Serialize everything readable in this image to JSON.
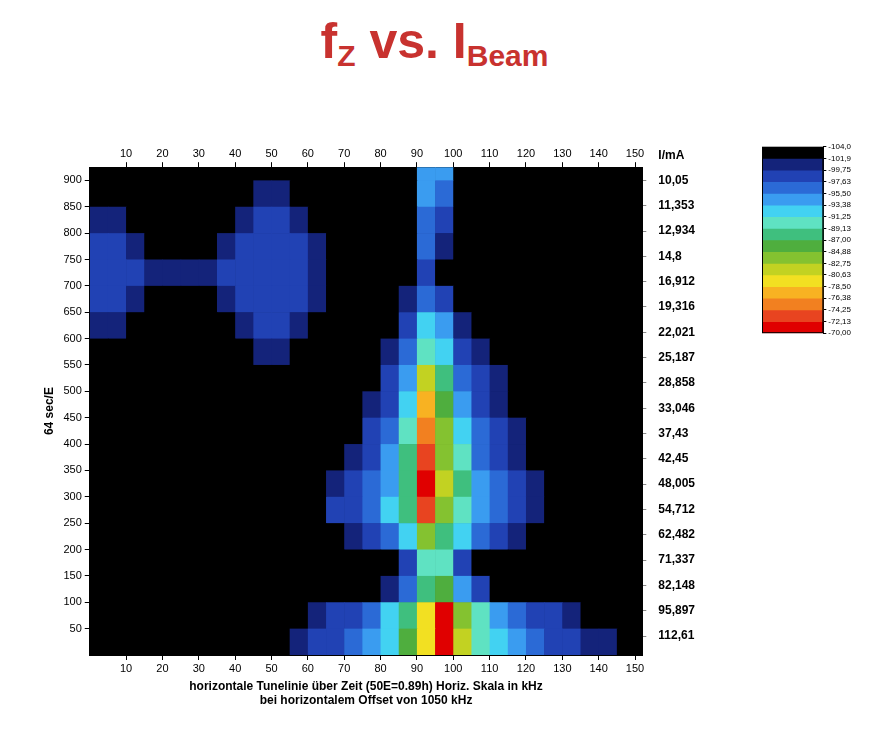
{
  "chart_data": {
    "type": "heatmap",
    "title": [
      {
        "text": "f"
      },
      {
        "text": "Z",
        "sub": true
      },
      {
        "text": " vs. I"
      },
      {
        "text": "Beam",
        "sub": true
      }
    ],
    "x_label": [
      "horizontale Tunelinie über Zeit (50E=0.89h) Horiz. Skala in kHz",
      "bei horizontalem Offset von 1050 kHz"
    ],
    "y_label": "64 sec/E",
    "xlim": [
      0,
      152
    ],
    "xticks": [
      10,
      20,
      30,
      40,
      50,
      60,
      70,
      80,
      90,
      100,
      110,
      120,
      130,
      140,
      150
    ],
    "ylim": [
      0,
      925
    ],
    "yticks": [
      50,
      100,
      150,
      200,
      250,
      300,
      350,
      400,
      450,
      500,
      550,
      600,
      650,
      700,
      750,
      800,
      850,
      900
    ],
    "right_title": "I/mA",
    "right_labels": [
      {
        "y": 900,
        "label": "10,05"
      },
      {
        "y": 852,
        "label": "11,353"
      },
      {
        "y": 804,
        "label": "12,934"
      },
      {
        "y": 756,
        "label": "14,8"
      },
      {
        "y": 708,
        "label": "16,912"
      },
      {
        "y": 660,
        "label": "19,316"
      },
      {
        "y": 612,
        "label": "22,021"
      },
      {
        "y": 564,
        "label": "25,187"
      },
      {
        "y": 516,
        "label": "28,858"
      },
      {
        "y": 468,
        "label": "33,046"
      },
      {
        "y": 420,
        "label": "37,43"
      },
      {
        "y": 372,
        "label": "42,45"
      },
      {
        "y": 324,
        "label": "48,005"
      },
      {
        "y": 276,
        "label": "54,712"
      },
      {
        "y": 228,
        "label": "62,482"
      },
      {
        "y": 180,
        "label": "71,337"
      },
      {
        "y": 132,
        "label": "82,148"
      },
      {
        "y": 84,
        "label": "95,897"
      },
      {
        "y": 36,
        "label": "112,61"
      }
    ],
    "grid": false,
    "x": [
      2.5,
      7.5,
      12.5,
      17.5,
      22.5,
      27.5,
      32.5,
      37.5,
      42.5,
      47.5,
      52.5,
      57.5,
      62.5,
      67.5,
      72.5,
      77.5,
      82.5,
      87.5,
      92.5,
      97.5,
      102.5,
      107.5,
      112.5,
      117.5,
      122.5,
      127.5,
      132.5,
      137.5,
      142.5,
      147.5
    ],
    "y": [
      925,
      875,
      825,
      775,
      725,
      675,
      625,
      575,
      525,
      475,
      425,
      375,
      325,
      275,
      225,
      175,
      125,
      75,
      25
    ],
    "z": [
      [
        -104,
        -104,
        -104,
        -104,
        -104,
        -104,
        -104,
        -104,
        -104,
        -104,
        -104,
        -104,
        -104,
        -104,
        -104,
        -104,
        -104,
        -104,
        -94,
        -95,
        -104,
        -104,
        -104,
        -104,
        -104,
        -104,
        -104,
        -104,
        -104,
        -104
      ],
      [
        -104,
        -104,
        -104,
        -104,
        -104,
        -104,
        -104,
        -104,
        -104,
        -101,
        -101,
        -104,
        -104,
        -104,
        -104,
        -104,
        -104,
        -104,
        -95,
        -97,
        -102,
        -104,
        -104,
        -104,
        -104,
        -104,
        -104,
        -104,
        -104,
        -104
      ],
      [
        -101,
        -101,
        -104,
        -104,
        -104,
        -104,
        -104,
        -104,
        -101,
        -99,
        -99,
        -101,
        -104,
        -104,
        -104,
        -104,
        -104,
        -104,
        -96,
        -98,
        -104,
        -104,
        -104,
        -104,
        -104,
        -104,
        -104,
        -104,
        -104,
        -104
      ],
      [
        -99,
        -99,
        -101,
        -104,
        -104,
        -104,
        -104,
        -101,
        -99,
        -99,
        -99,
        -99,
        -101,
        -104,
        -104,
        -104,
        -104,
        -104,
        -97,
        -101,
        -104,
        -104,
        -104,
        -104,
        -104,
        -104,
        -104,
        -104,
        -104,
        -104
      ],
      [
        -99,
        -99,
        -99,
        -101,
        -101,
        -101,
        -101,
        -99,
        -99,
        -99,
        -99,
        -99,
        -101,
        -104,
        -104,
        -104,
        -104,
        -104,
        -98,
        -104,
        -104,
        -104,
        -104,
        -104,
        -104,
        -104,
        -104,
        -104,
        -104,
        -104
      ],
      [
        -99,
        -99,
        -101,
        -104,
        -104,
        -104,
        -104,
        -101,
        -99,
        -99,
        -99,
        -99,
        -101,
        -104,
        -104,
        -104,
        -104,
        -101,
        -96,
        -99,
        -104,
        -104,
        -104,
        -104,
        -104,
        -104,
        -104,
        -104,
        -104,
        -104
      ],
      [
        -101,
        -101,
        -104,
        -104,
        -104,
        -104,
        -104,
        -104,
        -101,
        -99,
        -99,
        -101,
        -104,
        -104,
        -104,
        -104,
        -104,
        -99,
        -93,
        -95,
        -101,
        -104,
        -104,
        -104,
        -104,
        -104,
        -104,
        -104,
        -104,
        -104
      ],
      [
        -104,
        -104,
        -104,
        -104,
        -104,
        -104,
        -104,
        -104,
        -104,
        -101,
        -101,
        -104,
        -104,
        -104,
        -104,
        -104,
        -101,
        -97,
        -90,
        -92,
        -98,
        -101,
        -104,
        -104,
        -104,
        -104,
        -104,
        -104,
        -104,
        -104
      ],
      [
        -104,
        -104,
        -104,
        -104,
        -104,
        -104,
        -104,
        -104,
        -104,
        -104,
        -104,
        -104,
        -104,
        -104,
        -104,
        -104,
        -99,
        -95,
        -81,
        -88,
        -96,
        -99,
        -101,
        -104,
        -104,
        -104,
        -104,
        -104,
        -104,
        -104
      ],
      [
        -104,
        -104,
        -104,
        -104,
        -104,
        -104,
        -104,
        -104,
        -104,
        -104,
        -104,
        -104,
        -104,
        -104,
        -104,
        -101,
        -98,
        -93,
        -78,
        -86,
        -94,
        -98,
        -101,
        -104,
        -104,
        -104,
        -104,
        -104,
        -104,
        -104
      ],
      [
        -104,
        -104,
        -104,
        -104,
        -104,
        -104,
        -104,
        -104,
        -104,
        -104,
        -104,
        -104,
        -104,
        -104,
        -104,
        -99,
        -96,
        -91,
        -75,
        -84,
        -92,
        -97,
        -99,
        -101,
        -104,
        -104,
        -104,
        -104,
        -104,
        -104
      ],
      [
        -104,
        -104,
        -104,
        -104,
        -104,
        -104,
        -104,
        -104,
        -104,
        -104,
        -104,
        -104,
        -104,
        -104,
        -101,
        -98,
        -95,
        -89,
        -74,
        -83,
        -90,
        -96,
        -98,
        -101,
        -102,
        -104,
        -104,
        -104,
        -104,
        -104
      ],
      [
        -104,
        -104,
        -104,
        -104,
        -104,
        -104,
        -104,
        -104,
        -104,
        -104,
        -104,
        -104,
        -104,
        -101,
        -99,
        -97,
        -94,
        -88,
        -72,
        -82,
        -89,
        -94,
        -97,
        -99,
        -101,
        -104,
        -104,
        -104,
        -104,
        -104
      ],
      [
        -104,
        -104,
        -104,
        -104,
        -104,
        -104,
        -104,
        -104,
        -104,
        -104,
        -104,
        -104,
        -104,
        -99,
        -98,
        -96,
        -93,
        -88,
        -74,
        -84,
        -90,
        -95,
        -97,
        -99,
        -100,
        -102,
        -104,
        -104,
        -104,
        -104
      ],
      [
        -104,
        -104,
        -104,
        -104,
        -104,
        -104,
        -104,
        -104,
        -104,
        -104,
        -104,
        -104,
        -104,
        -104,
        -101,
        -98,
        -96,
        -92,
        -84,
        -88,
        -93,
        -97,
        -99,
        -101,
        -104,
        -104,
        -104,
        -104,
        -104,
        -104
      ],
      [
        -104,
        -104,
        -104,
        -104,
        -104,
        -104,
        -104,
        -104,
        -104,
        -104,
        -104,
        -104,
        -104,
        -104,
        -104,
        -104,
        -104,
        -99,
        -90,
        -91,
        -98,
        -104,
        -104,
        -104,
        -104,
        -104,
        -104,
        -104,
        -104,
        -104
      ],
      [
        -104,
        -104,
        -104,
        -104,
        -104,
        -104,
        -104,
        -104,
        -104,
        -104,
        -104,
        -104,
        -104,
        -104,
        -104,
        -102,
        -100,
        -96,
        -88,
        -86,
        -94,
        -99,
        -102,
        -104,
        -104,
        -104,
        -104,
        -104,
        -104,
        -104
      ],
      [
        -104,
        -104,
        -104,
        -104,
        -104,
        -104,
        -104,
        -104,
        -104,
        -104,
        -104,
        -104,
        -101,
        -99,
        -98,
        -96,
        -93,
        -88,
        -80,
        -72,
        -84,
        -91,
        -94,
        -96,
        -98,
        -99,
        -101,
        -104,
        -104,
        -104
      ],
      [
        -104,
        -104,
        -104,
        -104,
        -104,
        -104,
        -104,
        -104,
        -104,
        -104,
        -104,
        -101,
        -99,
        -98,
        -97,
        -95,
        -92,
        -87,
        -80,
        -70,
        -82,
        -90,
        -93,
        -95,
        -97,
        -98,
        -99,
        -100,
        -101,
        -104
      ]
    ],
    "colorbar": {
      "range": [
        -104,
        -70
      ],
      "ticks": [
        {
          "value": -104,
          "label": "-104,0"
        },
        {
          "value": -101.875,
          "label": "-101,9"
        },
        {
          "value": -99.75,
          "label": "-99,75"
        },
        {
          "value": -97.625,
          "label": "-97,63"
        },
        {
          "value": -95.5,
          "label": "-95,50"
        },
        {
          "value": -93.375,
          "label": "-93,38"
        },
        {
          "value": -91.25,
          "label": "-91,25"
        },
        {
          "value": -89.125,
          "label": "-89,13"
        },
        {
          "value": -87,
          "label": "-87,00"
        },
        {
          "value": -84.875,
          "label": "-84,88"
        },
        {
          "value": -82.75,
          "label": "-82,75"
        },
        {
          "value": -80.625,
          "label": "-80,63"
        },
        {
          "value": -78.5,
          "label": "-78,50"
        },
        {
          "value": -76.375,
          "label": "-76,38"
        },
        {
          "value": -74.25,
          "label": "-74,25"
        },
        {
          "value": -72.125,
          "label": "-72,13"
        },
        {
          "value": -70,
          "label": "-70,00"
        }
      ],
      "colors": [
        "#000000",
        "#14237a",
        "#2142b4",
        "#2b6ad6",
        "#3a9cf0",
        "#42d2f2",
        "#5fe2c2",
        "#3fbf7e",
        "#4fae3e",
        "#84c230",
        "#c2d222",
        "#f2e022",
        "#f8b222",
        "#f28020",
        "#e84420",
        "#e00000"
      ]
    }
  }
}
